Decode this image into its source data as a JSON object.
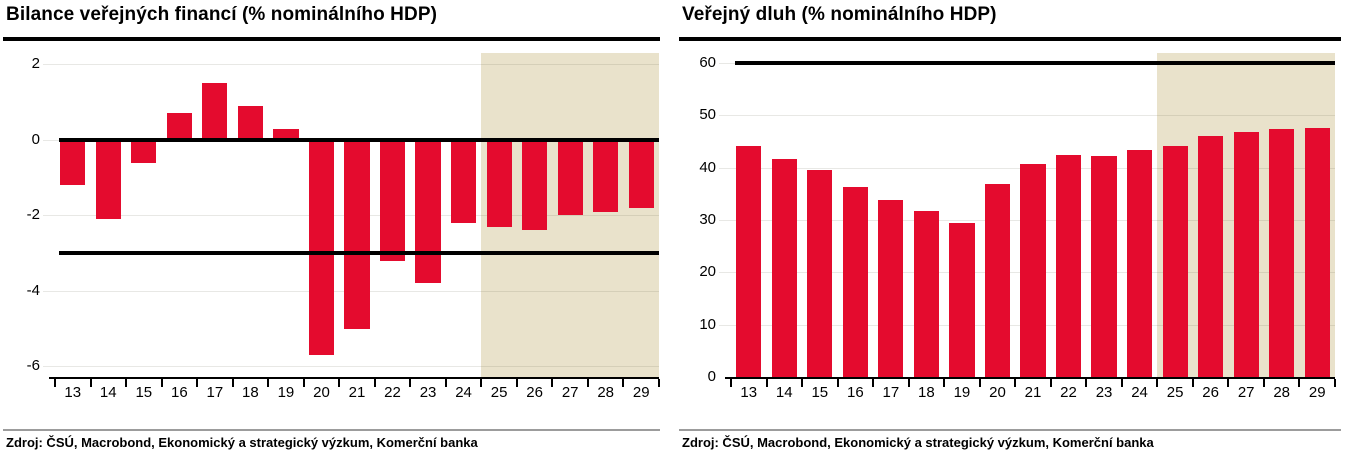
{
  "panels": [
    {
      "title": "Bilance veřejných financí (% nominálního HDP)",
      "source": "Zdroj: ČSÚ, Macrobond, Ekonomický a strategický výzkum, Komerční banka"
    },
    {
      "title": "Veřejný dluh (% nominálního HDP)",
      "source": "Zdroj: ČSÚ, Macrobond, Ekonomický a strategický výzkum, Komerční banka"
    }
  ],
  "colors": {
    "bar_red": "#e40b2e",
    "forecast_beige": "#e9e2cb",
    "reference_black": "#000000",
    "source_rule_gray": "#9c9c9c"
  },
  "chart_data": [
    {
      "type": "bar",
      "title": "Bilance veřejných financí (% nominálního HDP)",
      "categories": [
        "13",
        "14",
        "15",
        "16",
        "17",
        "18",
        "19",
        "20",
        "21",
        "22",
        "23",
        "24",
        "25",
        "26",
        "27",
        "28",
        "29"
      ],
      "values": [
        -1.2,
        -2.1,
        -0.6,
        0.7,
        1.5,
        0.9,
        0.3,
        -5.7,
        -5.0,
        -3.2,
        -3.8,
        -2.2,
        -2.3,
        -2.4,
        -2.0,
        -1.9,
        -1.8
      ],
      "xlabel": "",
      "ylabel": "",
      "yticks": [
        2,
        0,
        -2,
        -4,
        -6
      ],
      "ylim": [
        -6.28,
        2.3
      ],
      "reference_lines": [
        0,
        -3
      ],
      "forecast_start_category": "25",
      "grid": true,
      "legend": "none"
    },
    {
      "type": "bar",
      "title": "Veřejný dluh (% nominálního HDP)",
      "categories": [
        "13",
        "14",
        "15",
        "16",
        "17",
        "18",
        "19",
        "20",
        "21",
        "22",
        "23",
        "24",
        "25",
        "26",
        "27",
        "28",
        "29"
      ],
      "values": [
        44.2,
        41.6,
        39.5,
        36.3,
        33.8,
        31.7,
        29.5,
        36.9,
        40.6,
        42.4,
        42.2,
        43.3,
        44.2,
        46.1,
        46.8,
        47.3,
        47.6
      ],
      "xlabel": "",
      "ylabel": "",
      "yticks": [
        0,
        10,
        20,
        30,
        40,
        50,
        60
      ],
      "ylim": [
        0,
        61.9
      ],
      "reference_lines": [
        60
      ],
      "forecast_start_category": "25",
      "grid": true,
      "legend": "none"
    }
  ]
}
